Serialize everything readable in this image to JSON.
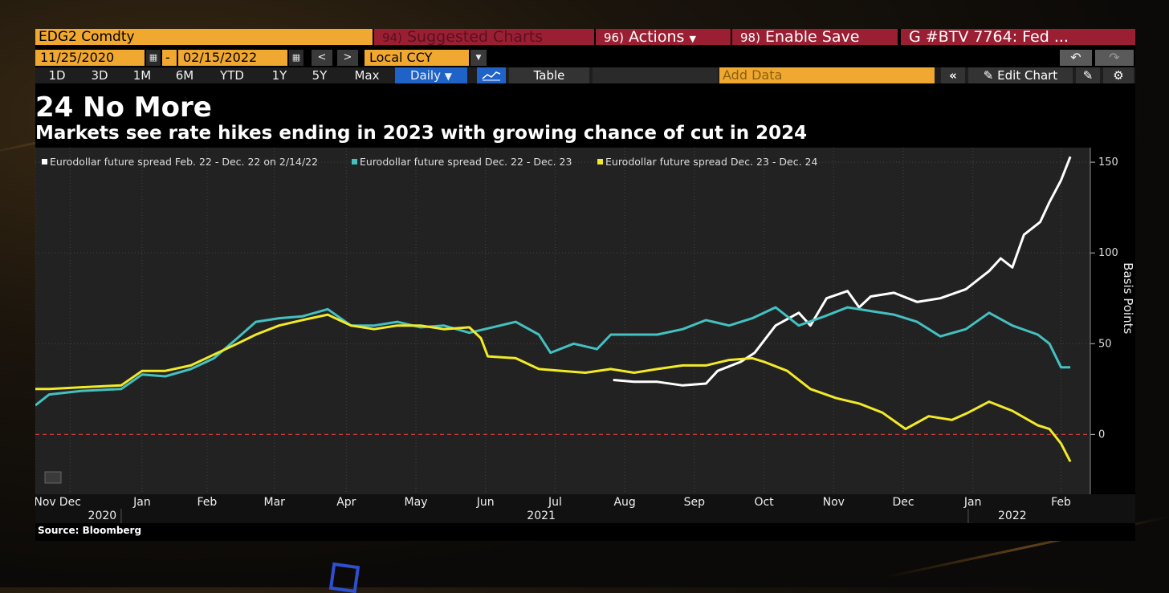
{
  "toolbar": {
    "ticker": "EDG2 Comdty",
    "suggested_num": "94)",
    "suggested_label": "Suggested Charts",
    "actions_num": "96)",
    "actions_label": "Actions",
    "save_num": "98)",
    "save_label": "Enable Save",
    "news": "G #BTV 7764: Fed ..."
  },
  "dates": {
    "start": "11/25/2020",
    "separator": "-",
    "end": "02/15/2022",
    "currency": "Local CCY"
  },
  "periods": [
    "1D",
    "3D",
    "1M",
    "6M",
    "YTD",
    "1Y",
    "5Y",
    "Max"
  ],
  "frequency": "Daily",
  "table_label": "Table",
  "add_data_placeholder": "Add Data",
  "edit_chart_label": "Edit Chart",
  "chart_title": "24 No More",
  "chart_subtitle": "Markets see rate hikes ending in 2023 with growing chance of cut in 2024",
  "source": "Source: Bloomberg",
  "colors": {
    "white_series": "#ffffff",
    "cyan_series": "#45c0c0",
    "yellow_series": "#f2ea28",
    "zero_line": "#c23a3a",
    "orange_bar": "#f0a830",
    "red_bar": "#9a1f33"
  },
  "chart_data": {
    "type": "line",
    "ylabel": "Basis Points",
    "ylim": [
      -33,
      158
    ],
    "yticks": [
      0,
      50,
      100,
      150
    ],
    "xlim": [
      "2020-11-25",
      "2022-02-15"
    ],
    "grid": true,
    "legend_position": "top-left",
    "reference_line": {
      "y": 0,
      "style": "dashed"
    },
    "x_month_labels": [
      {
        "date": "2020-11-25",
        "label": "Nov"
      },
      {
        "date": "2020-12-10",
        "label": "Dec"
      },
      {
        "date": "2021-01-10",
        "label": "Jan"
      },
      {
        "date": "2021-02-07",
        "label": "Feb"
      },
      {
        "date": "2021-03-08",
        "label": "Mar"
      },
      {
        "date": "2021-04-08",
        "label": "Apr"
      },
      {
        "date": "2021-05-08",
        "label": "May"
      },
      {
        "date": "2021-06-07",
        "label": "Jun"
      },
      {
        "date": "2021-07-07",
        "label": "Jul"
      },
      {
        "date": "2021-08-06",
        "label": "Aug"
      },
      {
        "date": "2021-09-05",
        "label": "Sep"
      },
      {
        "date": "2021-10-05",
        "label": "Oct"
      },
      {
        "date": "2021-11-04",
        "label": "Nov"
      },
      {
        "date": "2021-12-04",
        "label": "Dec"
      },
      {
        "date": "2022-01-03",
        "label": "Jan"
      },
      {
        "date": "2022-02-10",
        "label": "Feb"
      }
    ],
    "x_year_labels": [
      {
        "date": "2020-12-10",
        "label": "2020"
      },
      {
        "date": "2021-07-01",
        "label": "2021"
      },
      {
        "date": "2022-01-20",
        "label": "2022"
      }
    ],
    "series": [
      {
        "name": "Eurodollar future spread Feb. 22 - Dec. 22 on 2/14/22",
        "color": "#ffffff",
        "points": [
          [
            "2021-08-01",
            30
          ],
          [
            "2021-08-10",
            29
          ],
          [
            "2021-08-20",
            29
          ],
          [
            "2021-08-31",
            27
          ],
          [
            "2021-09-10",
            28
          ],
          [
            "2021-09-15",
            35
          ],
          [
            "2021-09-25",
            40
          ],
          [
            "2021-10-01",
            45
          ],
          [
            "2021-10-10",
            60
          ],
          [
            "2021-10-20",
            67
          ],
          [
            "2021-10-25",
            60
          ],
          [
            "2021-11-01",
            75
          ],
          [
            "2021-11-10",
            79
          ],
          [
            "2021-11-15",
            70
          ],
          [
            "2021-11-20",
            76
          ],
          [
            "2021-11-30",
            78
          ],
          [
            "2021-12-10",
            73
          ],
          [
            "2021-12-20",
            75
          ],
          [
            "2021-12-31",
            80
          ],
          [
            "2022-01-05",
            85
          ],
          [
            "2022-01-10",
            90
          ],
          [
            "2022-01-15",
            97
          ],
          [
            "2022-01-20",
            92
          ],
          [
            "2022-01-25",
            110
          ],
          [
            "2022-02-01",
            117
          ],
          [
            "2022-02-05",
            128
          ],
          [
            "2022-02-10",
            140
          ],
          [
            "2022-02-14",
            153
          ]
        ]
      },
      {
        "name": "Eurodollar future spread Dec. 22 - Dec. 23",
        "color": "#45c0c0",
        "points": [
          [
            "2020-11-25",
            16
          ],
          [
            "2020-12-01",
            22
          ],
          [
            "2020-12-15",
            24
          ],
          [
            "2021-01-01",
            25
          ],
          [
            "2021-01-10",
            33
          ],
          [
            "2021-01-20",
            32
          ],
          [
            "2021-01-31",
            36
          ],
          [
            "2021-02-10",
            42
          ],
          [
            "2021-02-20",
            53
          ],
          [
            "2021-02-28",
            62
          ],
          [
            "2021-03-10",
            64
          ],
          [
            "2021-03-20",
            65
          ],
          [
            "2021-03-31",
            69
          ],
          [
            "2021-04-10",
            60
          ],
          [
            "2021-04-20",
            60
          ],
          [
            "2021-04-30",
            62
          ],
          [
            "2021-05-10",
            59
          ],
          [
            "2021-05-20",
            60
          ],
          [
            "2021-05-31",
            56
          ],
          [
            "2021-06-10",
            59
          ],
          [
            "2021-06-20",
            62
          ],
          [
            "2021-06-30",
            55
          ],
          [
            "2021-07-05",
            45
          ],
          [
            "2021-07-15",
            50
          ],
          [
            "2021-07-25",
            47
          ],
          [
            "2021-07-31",
            55
          ],
          [
            "2021-08-10",
            55
          ],
          [
            "2021-08-20",
            55
          ],
          [
            "2021-08-31",
            58
          ],
          [
            "2021-09-10",
            63
          ],
          [
            "2021-09-20",
            60
          ],
          [
            "2021-09-30",
            64
          ],
          [
            "2021-10-10",
            70
          ],
          [
            "2021-10-20",
            60
          ],
          [
            "2021-10-31",
            65
          ],
          [
            "2021-11-10",
            70
          ],
          [
            "2021-11-20",
            68
          ],
          [
            "2021-11-30",
            66
          ],
          [
            "2021-12-10",
            62
          ],
          [
            "2021-12-20",
            54
          ],
          [
            "2021-12-31",
            58
          ],
          [
            "2022-01-10",
            67
          ],
          [
            "2022-01-20",
            60
          ],
          [
            "2022-01-31",
            55
          ],
          [
            "2022-02-05",
            50
          ],
          [
            "2022-02-10",
            37
          ],
          [
            "2022-02-14",
            37
          ]
        ]
      },
      {
        "name": "Eurodollar future spread Dec. 23 - Dec. 24",
        "color": "#f2ea28",
        "points": [
          [
            "2020-11-25",
            25
          ],
          [
            "2020-12-01",
            25
          ],
          [
            "2020-12-15",
            26
          ],
          [
            "2021-01-01",
            27
          ],
          [
            "2021-01-10",
            35
          ],
          [
            "2021-01-20",
            35
          ],
          [
            "2021-01-31",
            38
          ],
          [
            "2021-02-10",
            44
          ],
          [
            "2021-02-20",
            50
          ],
          [
            "2021-02-28",
            55
          ],
          [
            "2021-03-10",
            60
          ],
          [
            "2021-03-20",
            63
          ],
          [
            "2021-03-31",
            66
          ],
          [
            "2021-04-10",
            60
          ],
          [
            "2021-04-20",
            58
          ],
          [
            "2021-04-30",
            60
          ],
          [
            "2021-05-10",
            60
          ],
          [
            "2021-05-20",
            58
          ],
          [
            "2021-05-31",
            59
          ],
          [
            "2021-06-05",
            53
          ],
          [
            "2021-06-08",
            43
          ],
          [
            "2021-06-20",
            42
          ],
          [
            "2021-06-30",
            36
          ],
          [
            "2021-07-10",
            35
          ],
          [
            "2021-07-20",
            34
          ],
          [
            "2021-07-31",
            36
          ],
          [
            "2021-08-10",
            34
          ],
          [
            "2021-08-20",
            36
          ],
          [
            "2021-08-31",
            38
          ],
          [
            "2021-09-10",
            38
          ],
          [
            "2021-09-20",
            41
          ],
          [
            "2021-09-30",
            42
          ],
          [
            "2021-10-05",
            40
          ],
          [
            "2021-10-15",
            35
          ],
          [
            "2021-10-25",
            25
          ],
          [
            "2021-11-05",
            20
          ],
          [
            "2021-11-15",
            17
          ],
          [
            "2021-11-25",
            12
          ],
          [
            "2021-12-05",
            3
          ],
          [
            "2021-12-15",
            10
          ],
          [
            "2021-12-25",
            8
          ],
          [
            "2022-01-01",
            12
          ],
          [
            "2022-01-10",
            18
          ],
          [
            "2022-01-20",
            13
          ],
          [
            "2022-01-31",
            5
          ],
          [
            "2022-02-05",
            3
          ],
          [
            "2022-02-10",
            -5
          ],
          [
            "2022-02-14",
            -15
          ]
        ]
      }
    ]
  }
}
